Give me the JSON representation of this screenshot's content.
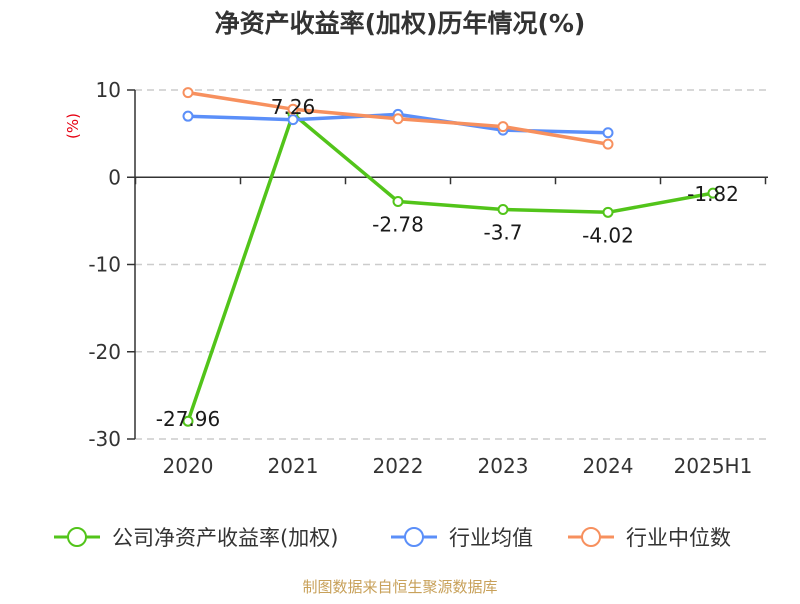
{
  "chart_data": {
    "type": "line",
    "title": "净资产收益率(加权)历年情况(%)",
    "ylabel": "(%)",
    "xlabel": "",
    "categories": [
      "2020",
      "2021",
      "2022",
      "2023",
      "2024",
      "2025H1"
    ],
    "ylim": [
      -30,
      10
    ],
    "yticks": [
      10,
      0,
      -10,
      -20,
      -30
    ],
    "grid": "horizontal dashed",
    "legend_position": "bottom",
    "series": [
      {
        "name": "公司净资产收益率(加权)",
        "color": "#52c41a",
        "values": [
          -27.96,
          7.26,
          -2.78,
          -3.7,
          -4.02,
          -1.82
        ],
        "labels": [
          "-27.96",
          "7.26",
          "-2.78",
          "-3.7",
          "-4.02",
          "-1.82"
        ]
      },
      {
        "name": "行业均值",
        "color": "#5b8ff9",
        "values": [
          7.0,
          6.6,
          7.2,
          5.4,
          5.1,
          null
        ]
      },
      {
        "name": "行业中位数",
        "color": "#f7905e",
        "values": [
          9.7,
          7.8,
          6.7,
          5.8,
          3.8,
          null
        ]
      }
    ],
    "source": "制图数据来自恒生聚源数据库"
  }
}
